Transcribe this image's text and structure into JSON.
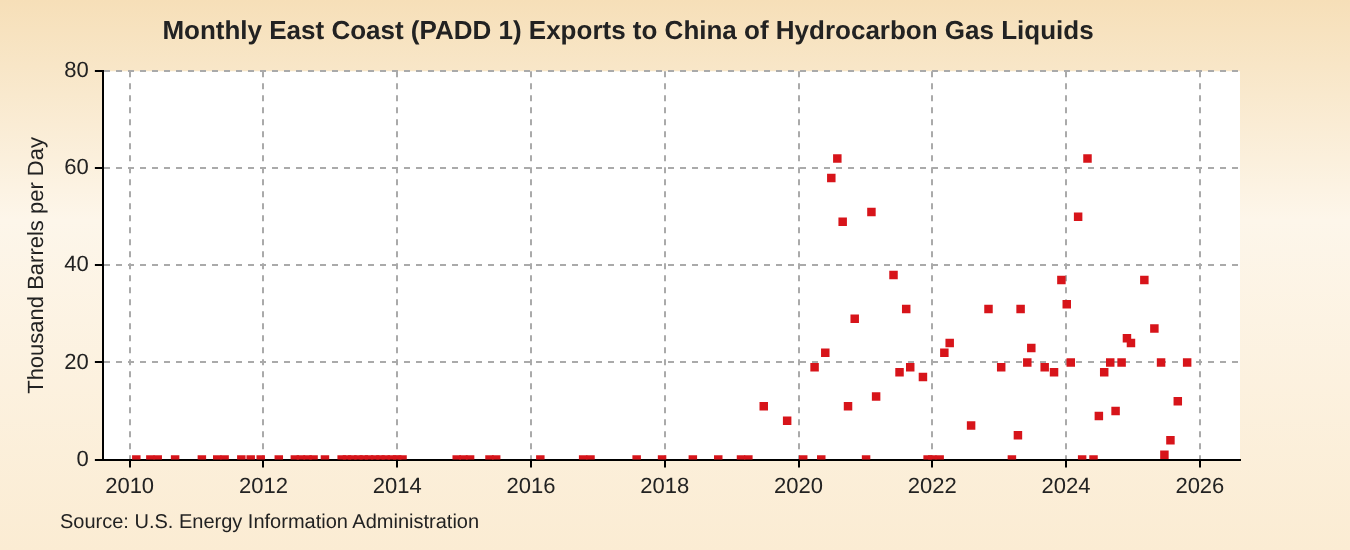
{
  "chart_data": {
    "type": "scatter",
    "title": "Monthly East Coast (PADD 1) Exports to China of Hydrocarbon Gas Liquids",
    "ylabel": "Thousand Barrels per Day",
    "annotations": [
      "Source: U.S. Energy Information Administration"
    ],
    "x": [
      2010.1,
      2010.31,
      2010.42,
      2010.68,
      2011.08,
      2011.31,
      2011.42,
      2011.67,
      2011.81,
      2011.96,
      2012.23,
      2012.47,
      2012.56,
      2012.66,
      2012.75,
      2012.92,
      2013.17,
      2013.25,
      2013.33,
      2013.42,
      2013.5,
      2013.58,
      2013.67,
      2013.75,
      2013.83,
      2013.92,
      2014.0,
      2014.08,
      2014.89,
      2014.99,
      2015.09,
      2015.38,
      2015.48,
      2016.14,
      2016.78,
      2016.89,
      2017.58,
      2017.96,
      2018.42,
      2018.8,
      2019.14,
      2019.25,
      2019.48,
      2019.83,
      2020.07,
      2020.24,
      2020.34,
      2020.4,
      2020.49,
      2020.58,
      2020.66,
      2020.74,
      2020.84,
      2021.01,
      2021.09,
      2021.16,
      2021.42,
      2021.51,
      2021.61,
      2021.67,
      2021.86,
      2021.93,
      2022.0,
      2022.11,
      2022.18,
      2022.26,
      2022.58,
      2022.84,
      2023.03,
      2023.19,
      2023.28,
      2023.32,
      2023.42,
      2023.48,
      2023.68,
      2023.82,
      2023.93,
      2024.01,
      2024.07,
      2024.18,
      2024.24,
      2024.32,
      2024.41,
      2024.49,
      2024.57,
      2024.66,
      2024.74,
      2024.83,
      2024.91,
      2024.97,
      2025.17,
      2025.32,
      2025.42,
      2025.47,
      2025.56,
      2025.67,
      2025.81
    ],
    "values": [
      0,
      0,
      0,
      0,
      0,
      0,
      0,
      0,
      0,
      0,
      0,
      0,
      0,
      0,
      0,
      0,
      0,
      0,
      0,
      0,
      0,
      0,
      0,
      0,
      0,
      0,
      0,
      0,
      0,
      0,
      0,
      0,
      0,
      0,
      0,
      0,
      0,
      0,
      0,
      0,
      0,
      0,
      11,
      8,
      0,
      19,
      0,
      22,
      58,
      62,
      49,
      11,
      29,
      0,
      51,
      13,
      38,
      18,
      31,
      19,
      17,
      0,
      0,
      0,
      22,
      24,
      7,
      31,
      19,
      0,
      5,
      31,
      20,
      23,
      19,
      18,
      37,
      32,
      20,
      50,
      0,
      62,
      0,
      9,
      18,
      20,
      10,
      20,
      25,
      24,
      37,
      27,
      20,
      1,
      4,
      12,
      20
    ],
    "color": "#d7141a",
    "marker": "square",
    "xlim": [
      2009.6,
      2026.6
    ],
    "xticks": [
      2010,
      2012,
      2014,
      2016,
      2018,
      2020,
      2022,
      2024,
      2026
    ],
    "ylim": [
      0,
      80
    ],
    "yticks": [
      0,
      20,
      40,
      60,
      80
    ],
    "grid": true,
    "legend": false
  }
}
